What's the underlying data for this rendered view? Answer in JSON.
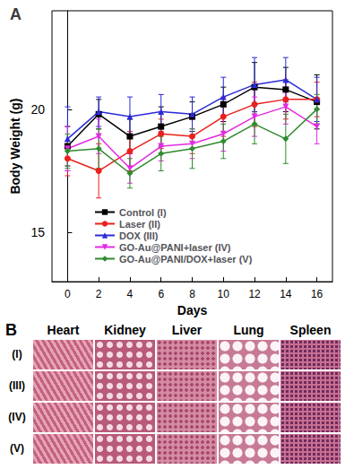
{
  "chart_data": {
    "type": "line",
    "panel_label": "A",
    "x_label": "Days",
    "y_label": "Body Weight (g)",
    "x": [
      0,
      2,
      4,
      6,
      8,
      10,
      12,
      14,
      16
    ],
    "xlim": [
      -1,
      17
    ],
    "xticks": [
      0,
      2,
      4,
      6,
      8,
      10,
      12,
      14,
      16
    ],
    "ylim": [
      13,
      24
    ],
    "yticks": [
      15,
      20
    ],
    "grid": false,
    "legend": "lower center",
    "series": [
      {
        "name": "Control (I)",
        "color": "#000000",
        "marker": "square",
        "values": [
          18.5,
          19.8,
          18.9,
          19.3,
          19.7,
          20.2,
          20.9,
          20.8,
          20.3
        ],
        "errors": [
          0.8,
          0.6,
          0.7,
          0.8,
          0.6,
          0.7,
          1.0,
          0.9,
          1.1
        ]
      },
      {
        "name": "Laser (II)",
        "color": "#e8211e",
        "marker": "circle",
        "values": [
          18.0,
          17.5,
          18.3,
          19.0,
          18.9,
          19.7,
          20.2,
          20.4,
          20.4
        ],
        "errors": [
          0.7,
          1.1,
          0.8,
          0.6,
          0.7,
          0.8,
          0.9,
          0.8,
          0.7
        ]
      },
      {
        "name": "DOX (III)",
        "color": "#2a2ad8",
        "marker": "triangle",
        "values": [
          18.8,
          19.9,
          19.7,
          19.9,
          19.8,
          20.5,
          21.0,
          21.2,
          20.4
        ],
        "errors": [
          1.3,
          0.6,
          0.8,
          0.7,
          0.7,
          0.8,
          1.1,
          0.9,
          0.9
        ]
      },
      {
        "name": "GO-Au@PANI+laser (IV)",
        "color": "#e22be2",
        "marker": "triangle_down",
        "values": [
          18.4,
          18.9,
          17.6,
          18.5,
          18.6,
          19.0,
          19.7,
          20.1,
          19.3
        ],
        "errors": [
          0.9,
          0.7,
          0.6,
          0.6,
          0.6,
          0.7,
          0.8,
          0.7,
          0.7
        ]
      },
      {
        "name": "GO-Au@PANI/DOX+laser (V)",
        "color": "#2e8b2e",
        "marker": "diamond",
        "values": [
          18.3,
          18.4,
          17.4,
          18.2,
          18.4,
          18.7,
          19.4,
          18.8,
          20.0
        ],
        "errors": [
          0.7,
          0.8,
          0.6,
          0.7,
          0.8,
          0.7,
          0.8,
          1.0,
          0.6
        ]
      }
    ]
  },
  "histology": {
    "panel_label": "B",
    "columns": [
      "Heart",
      "Kidney",
      "Liver",
      "Lung",
      "Spleen"
    ],
    "rows": [
      "(I)",
      "(III)",
      "(IV)",
      "(V)"
    ]
  }
}
